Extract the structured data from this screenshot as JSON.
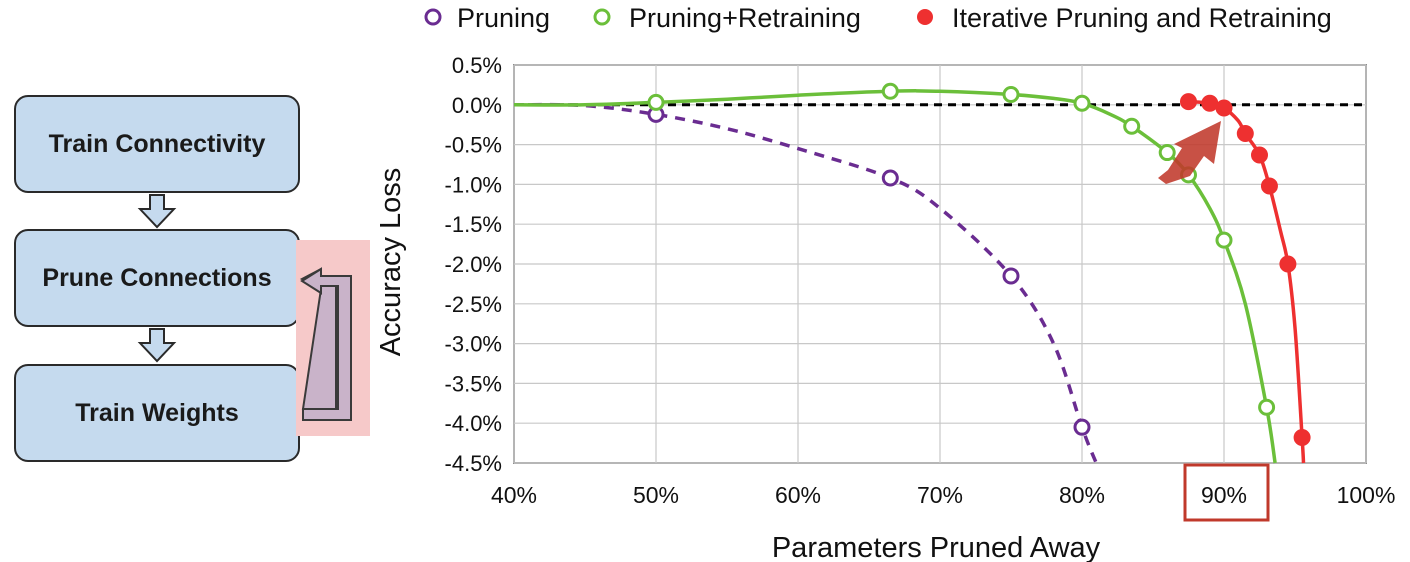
{
  "flowchart": {
    "steps": [
      "Train Connectivity",
      "Prune Connections",
      "Train Weights"
    ],
    "colors": {
      "box_fill": "#c5daee",
      "loop_fill": "#c9b3c9",
      "loop_highlight": "#f6c9c9"
    }
  },
  "chart_data": {
    "type": "line",
    "xlabel": "Parameters Pruned Away",
    "ylabel": "Accuracy Loss",
    "xlim": [
      40,
      100
    ],
    "ylim": [
      -4.5,
      0.5
    ],
    "x_ticks": [
      "40%",
      "50%",
      "60%",
      "70%",
      "80%",
      "90%",
      "100%"
    ],
    "y_ticks": [
      "0.5%",
      "0.0%",
      "-0.5%",
      "-1.0%",
      "-1.5%",
      "-2.0%",
      "-2.5%",
      "-3.0%",
      "-3.5%",
      "-4.0%",
      "-4.5%"
    ],
    "grid": true,
    "legend_position": "top",
    "highlighted_tick": "90%",
    "baseline": 0.0,
    "series": [
      {
        "name": "Pruning",
        "color": "#6a2c91",
        "marker": "open-circle",
        "line": "dashed",
        "points": [
          [
            50,
            -0.12
          ],
          [
            66.5,
            -0.92
          ],
          [
            75,
            -2.15
          ],
          [
            80,
            -4.05
          ]
        ],
        "curve": [
          [
            40,
            0.0
          ],
          [
            45,
            -0.01
          ],
          [
            50,
            -0.12
          ],
          [
            55,
            -0.3
          ],
          [
            60,
            -0.55
          ],
          [
            66.5,
            -0.92
          ],
          [
            70,
            -1.3
          ],
          [
            75,
            -2.15
          ],
          [
            78,
            -3.0
          ],
          [
            80,
            -4.05
          ],
          [
            81,
            -4.5
          ]
        ]
      },
      {
        "name": "Pruning+Retraining",
        "color": "#6bbf3a",
        "marker": "open-circle",
        "line": "solid",
        "points": [
          [
            50,
            0.03
          ],
          [
            66.5,
            0.17
          ],
          [
            75,
            0.13
          ],
          [
            80,
            0.02
          ],
          [
            83.5,
            -0.27
          ],
          [
            86,
            -0.6
          ],
          [
            87.5,
            -0.88
          ],
          [
            90,
            -1.7
          ],
          [
            93,
            -3.8
          ]
        ],
        "curve": [
          [
            40,
            0.0
          ],
          [
            45,
            0.0
          ],
          [
            50,
            0.03
          ],
          [
            55,
            0.07
          ],
          [
            60,
            0.12
          ],
          [
            66.5,
            0.17
          ],
          [
            70,
            0.17
          ],
          [
            75,
            0.13
          ],
          [
            78,
            0.08
          ],
          [
            80,
            0.02
          ],
          [
            82,
            -0.12
          ],
          [
            83.5,
            -0.27
          ],
          [
            86,
            -0.6
          ],
          [
            87.5,
            -0.88
          ],
          [
            89,
            -1.3
          ],
          [
            90,
            -1.7
          ],
          [
            91.5,
            -2.5
          ],
          [
            93,
            -3.8
          ],
          [
            93.6,
            -4.5
          ]
        ]
      },
      {
        "name": "Iterative Pruning and Retraining",
        "color": "#ee3030",
        "marker": "filled-circle",
        "line": "solid",
        "points": [
          [
            87.5,
            0.04
          ],
          [
            89,
            0.02
          ],
          [
            90,
            -0.04
          ],
          [
            91.5,
            -0.36
          ],
          [
            92.5,
            -0.63
          ],
          [
            93.2,
            -1.02
          ],
          [
            94.5,
            -2.0
          ],
          [
            95.5,
            -4.18
          ]
        ],
        "curve": [
          [
            87.5,
            0.04
          ],
          [
            89,
            0.02
          ],
          [
            90,
            -0.04
          ],
          [
            91,
            -0.2
          ],
          [
            91.5,
            -0.36
          ],
          [
            92.5,
            -0.63
          ],
          [
            93.2,
            -1.02
          ],
          [
            94,
            -1.6
          ],
          [
            94.5,
            -2.0
          ],
          [
            95,
            -2.8
          ],
          [
            95.5,
            -4.18
          ],
          [
            95.6,
            -4.5
          ]
        ]
      }
    ]
  }
}
